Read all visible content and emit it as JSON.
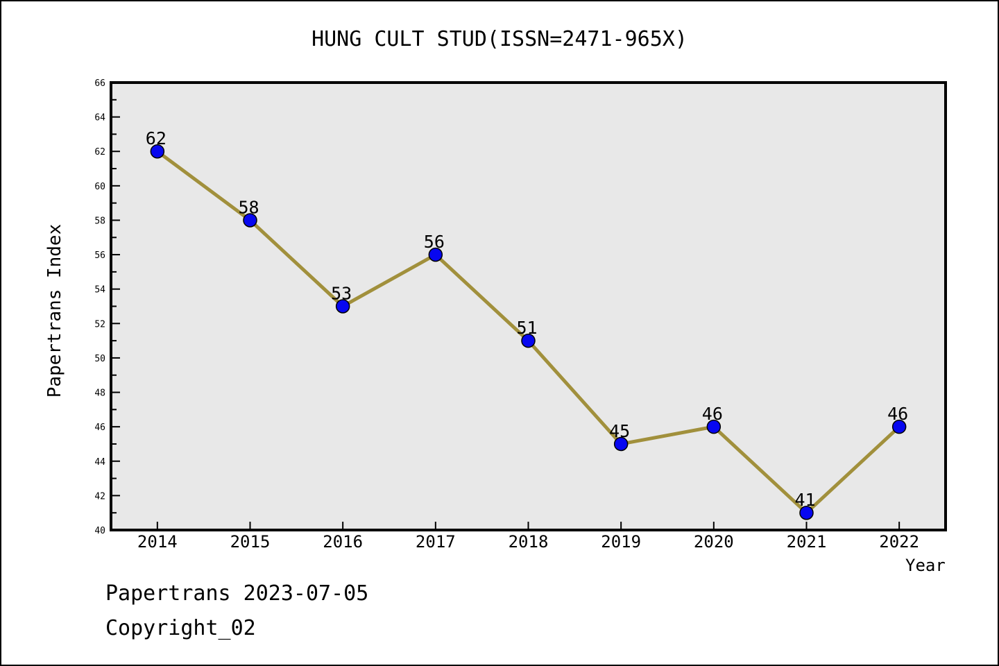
{
  "chart_data": {
    "type": "line",
    "title": "HUNG CULT STUD(ISSN=2471-965X)",
    "categories": [
      "2014",
      "2015",
      "2016",
      "2017",
      "2018",
      "2019",
      "2020",
      "2021",
      "2022"
    ],
    "values": [
      62,
      58,
      53,
      56,
      51,
      45,
      46,
      41,
      46
    ],
    "xlabel": "Year",
    "ylabel": "Papertrans Index",
    "ylim": [
      40,
      66
    ],
    "y_major_step": 2,
    "y_minor_step": 1,
    "grid": false,
    "legend": null,
    "point_labels_visible": true,
    "colors": {
      "line": "#A1903C",
      "marker": "#0707F0",
      "marker_edge": "#000000",
      "plot_background": "#E8E8E8",
      "axis": "#000000",
      "text": "#000000",
      "figure_background": "#FFFFFF"
    }
  },
  "footer": {
    "line1": "Papertrans 2023-07-05",
    "line2": "Copyright_02"
  }
}
